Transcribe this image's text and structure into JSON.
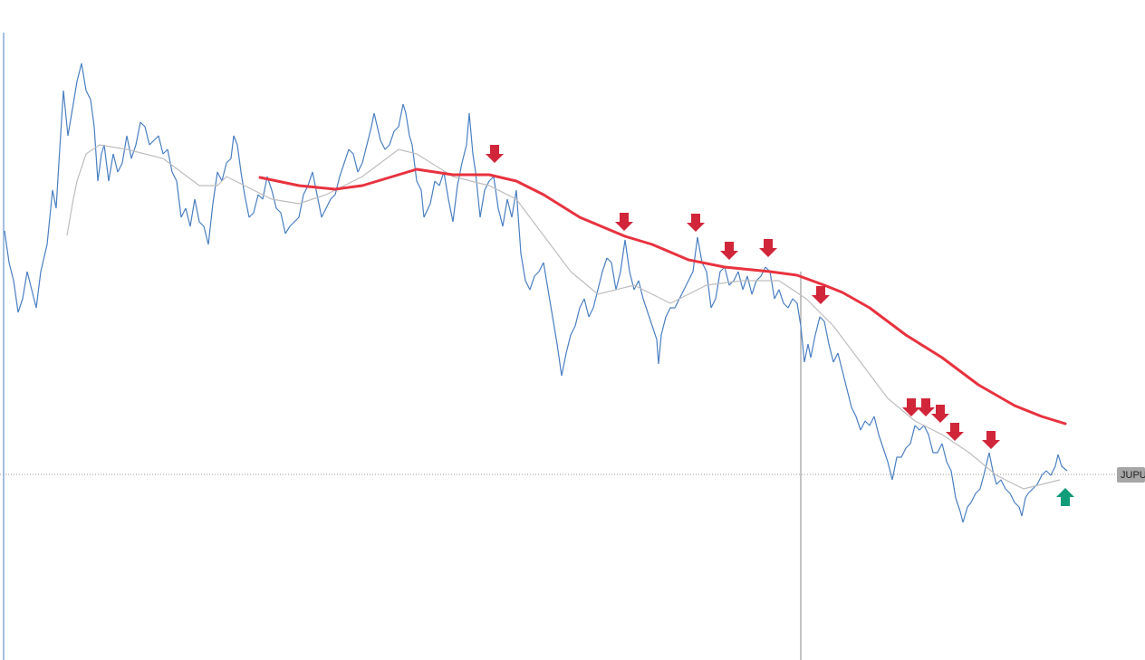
{
  "price_tag": "JUPU"
}
